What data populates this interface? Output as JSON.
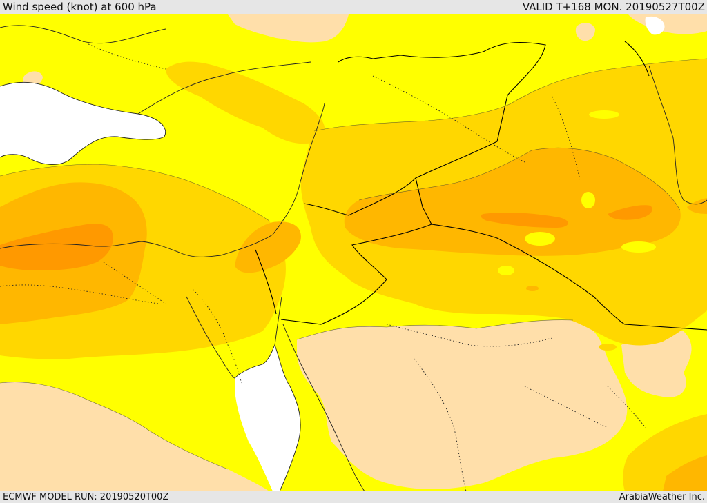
{
  "header": {
    "title": "Wind speed (knot) at 600 hPa",
    "valid": "VALID T+168 MON. 20190527T00Z"
  },
  "footer": {
    "model_run": "ECMWF MODEL RUN: 20190520T00Z",
    "credit": "ArabiaWeather Inc."
  },
  "map": {
    "variable": "Wind speed",
    "units": "knot",
    "level": "600 hPa",
    "colors": {
      "weakest": "#ffdfaa",
      "weak": "#ffff00",
      "moderate": "#ffd700",
      "strong": "#ffb700",
      "strongest": "#ff9900",
      "water": "#ffffff"
    }
  }
}
